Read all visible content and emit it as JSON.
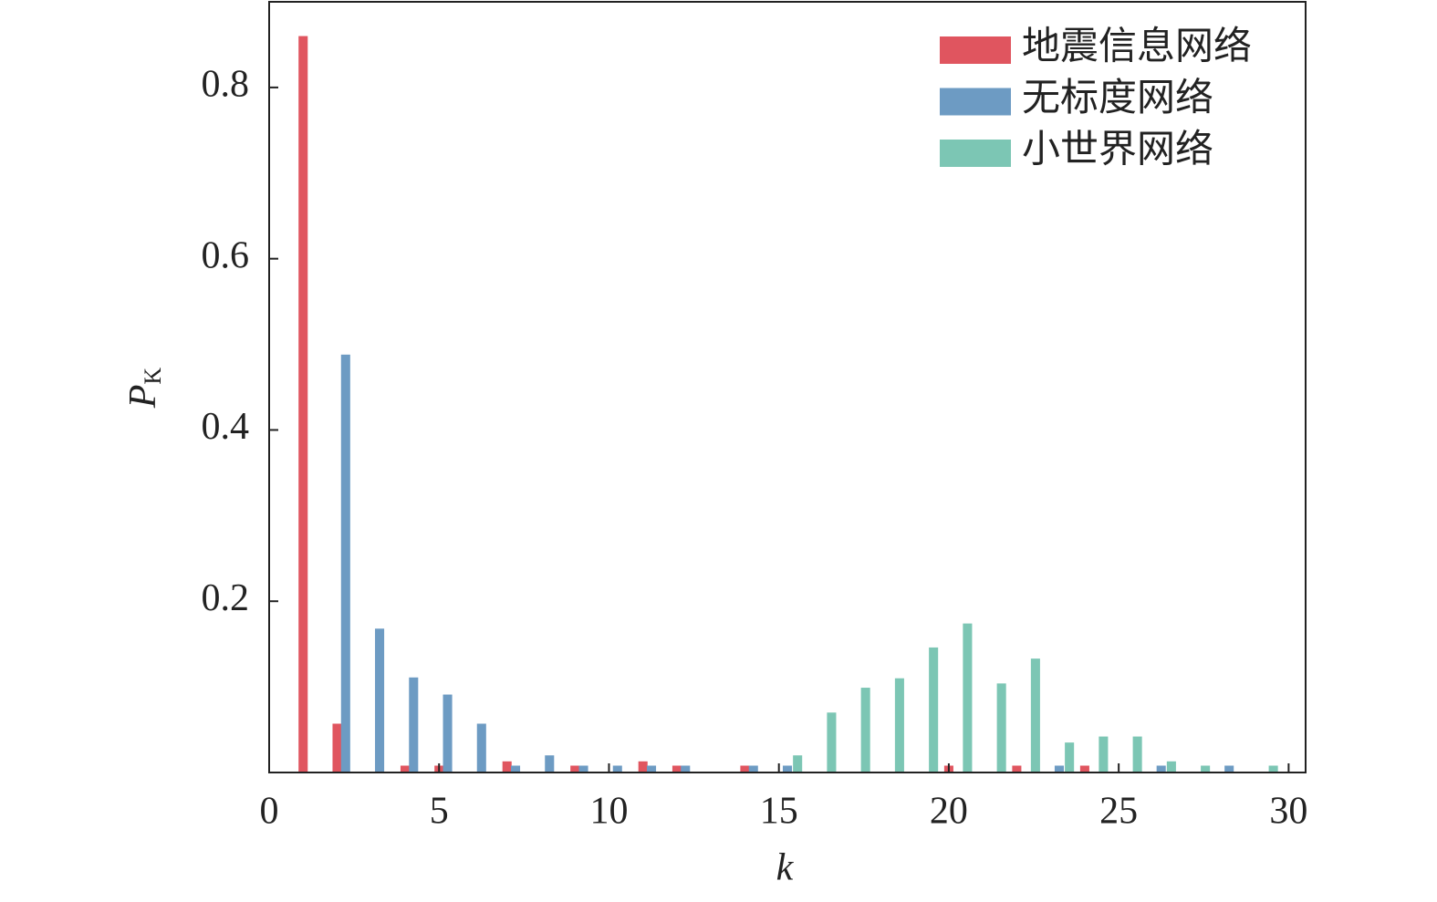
{
  "chart_data": {
    "type": "bar",
    "xlabel": "k",
    "ylabel": "P",
    "ylabel_subscript": "K",
    "x": [
      1,
      2,
      3,
      4,
      5,
      6,
      7,
      8,
      9,
      10,
      11,
      12,
      13,
      14,
      15,
      16,
      17,
      18,
      19,
      20,
      21,
      22,
      23,
      24,
      25,
      26,
      27,
      28,
      29
    ],
    "series": [
      {
        "name": "地震信息网络",
        "color": "#e0555f",
        "values": [
          0.86,
          0.057,
          null,
          0.008,
          0.008,
          null,
          0.013,
          null,
          0.008,
          null,
          0.013,
          0.008,
          null,
          0.008,
          null,
          null,
          null,
          null,
          null,
          0.008,
          null,
          0.008,
          null,
          0.008,
          null,
          null,
          null,
          null,
          null
        ]
      },
      {
        "name": "无标度网络",
        "color": "#6d9bc3",
        "values": [
          null,
          0.488,
          0.168,
          0.111,
          0.091,
          0.057,
          0.008,
          0.02,
          0.008,
          0.008,
          0.008,
          0.008,
          null,
          0.008,
          0.008,
          null,
          null,
          null,
          null,
          null,
          null,
          null,
          0.008,
          null,
          null,
          0.008,
          null,
          0.008,
          null
        ]
      },
      {
        "name": "小世界网络",
        "color": "#7cc6b4",
        "values": [
          null,
          null,
          null,
          null,
          null,
          null,
          null,
          null,
          null,
          null,
          null,
          null,
          null,
          null,
          0.02,
          0.07,
          0.099,
          0.11,
          0.146,
          0.174,
          0.104,
          0.133,
          0.035,
          0.042,
          0.042,
          0.013,
          0.008,
          null,
          0.008
        ]
      }
    ],
    "xlim": [
      0,
      30.5
    ],
    "xticks": [
      0,
      5,
      10,
      15,
      20,
      25,
      30
    ],
    "ylim": [
      0,
      0.9
    ],
    "yticks": [
      0.2,
      0.4,
      0.6,
      0.8
    ],
    "legend": "upper right"
  }
}
